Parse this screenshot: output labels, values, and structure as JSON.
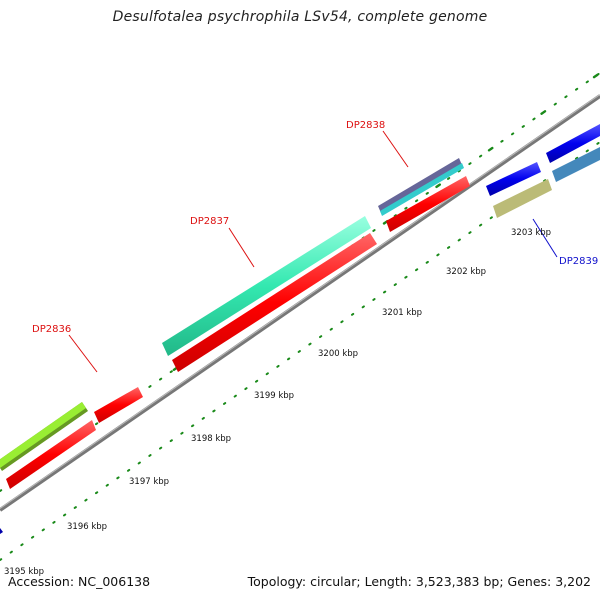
{
  "title": "Desulfotalea psychrophila LSv54, complete genome",
  "footer": {
    "accession": "Accession: NC_006138",
    "summary": "Topology: circular; Length: 3,523,383 bp; Genes: 3,202"
  },
  "colors": {
    "backbone": "#888888",
    "tick": "#1a8a1a",
    "gene_label_red": "#dd1111",
    "gene_label_blue": "#1111cc",
    "red_gene": "#ff0000",
    "teal_gene": "#33e8b0",
    "lime_gene": "#99ee33",
    "olive_gene": "#999900",
    "purple_gene": "#666699",
    "cyan_gene": "#33cccc",
    "blue_gene": "#0000ee",
    "steel_gene": "#4488bb",
    "khaki_gene": "#bbbb77"
  },
  "scale_labels": [
    {
      "name": "kbp-3195",
      "text": "3195 kbp"
    },
    {
      "name": "kbp-3196",
      "text": "3196 kbp"
    },
    {
      "name": "kbp-3197",
      "text": "3197 kbp"
    },
    {
      "name": "kbp-3198",
      "text": "3198 kbp"
    },
    {
      "name": "kbp-3199",
      "text": "3199 kbp"
    },
    {
      "name": "kbp-3200",
      "text": "3200 kbp"
    },
    {
      "name": "kbp-3201",
      "text": "3201 kbp"
    },
    {
      "name": "kbp-3202",
      "text": "3202 kbp"
    },
    {
      "name": "kbp-3203",
      "text": "3203 kbp"
    }
  ],
  "gene_labels": [
    {
      "name": "gene-label-dp2836",
      "text": "DP2836"
    },
    {
      "name": "gene-label-dp2837",
      "text": "DP2837"
    },
    {
      "name": "gene-label-dp2838",
      "text": "DP2838"
    },
    {
      "name": "gene-label-dp2839",
      "text": "DP2839"
    }
  ]
}
